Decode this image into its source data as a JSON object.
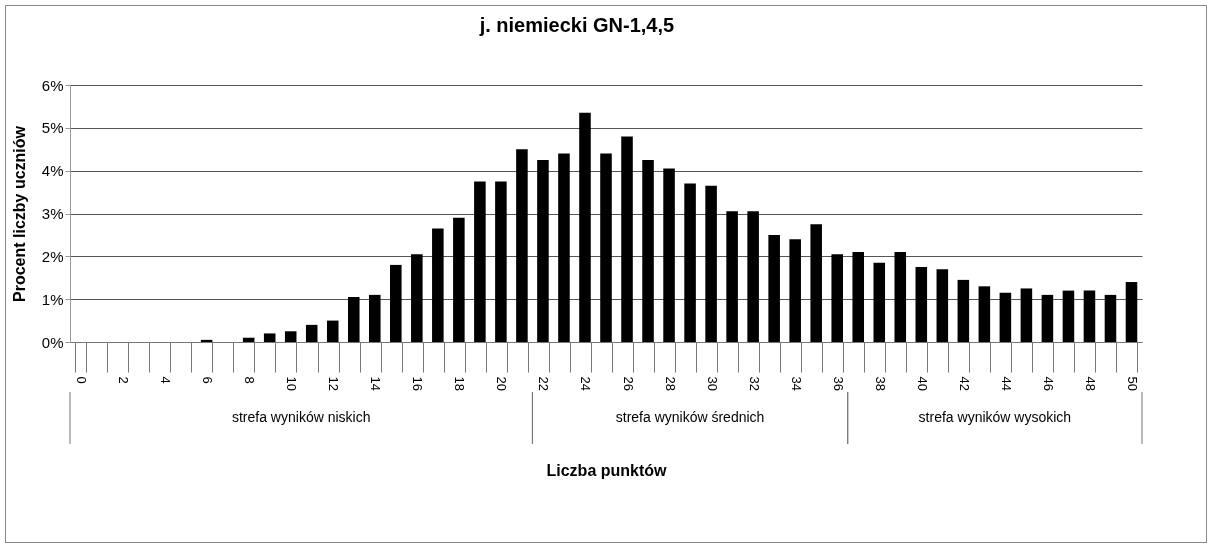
{
  "chart_data": {
    "type": "bar",
    "title": "j. niemiecki GN-1,4,5",
    "xlabel": "Liczba punktów",
    "ylabel": "Procent liczby uczniów",
    "categories": [
      "0",
      null,
      "2",
      null,
      "4",
      null,
      "6",
      null,
      "8",
      null,
      "10",
      null,
      "12",
      null,
      "14",
      null,
      "16",
      null,
      "18",
      null,
      "20",
      null,
      "22",
      null,
      "24",
      null,
      "26",
      null,
      "28",
      null,
      "30",
      null,
      "32",
      null,
      "34",
      null,
      "36",
      null,
      "38",
      null,
      "40",
      null,
      "42",
      null,
      "44",
      null,
      "46",
      null,
      "48",
      null,
      "50"
    ],
    "values": [
      0,
      0,
      0,
      0,
      0,
      0,
      0.05,
      0,
      0.1,
      0.2,
      0.25,
      0.4,
      0.5,
      1.05,
      1.1,
      1.8,
      2.05,
      2.65,
      2.9,
      3.75,
      3.75,
      4.5,
      4.25,
      4.4,
      5.35,
      4.4,
      4.8,
      4.25,
      4.05,
      3.7,
      3.65,
      3.05,
      3.05,
      2.5,
      2.4,
      2.75,
      2.05,
      2.1,
      1.85,
      2.1,
      1.75,
      1.7,
      1.45,
      1.3,
      1.15,
      1.25,
      1.1,
      1.2,
      1.2,
      1.1,
      1.4
    ],
    "color": "#000000",
    "ylim": [
      0,
      6
    ],
    "yticks": [
      {
        "value": 0,
        "label": "0%"
      },
      {
        "value": 1,
        "label": "1%"
      },
      {
        "value": 2,
        "label": "2%"
      },
      {
        "value": 3,
        "label": "3%"
      },
      {
        "value": 4,
        "label": "4%"
      },
      {
        "value": 5,
        "label": "5%"
      },
      {
        "value": 6,
        "label": "6%"
      }
    ],
    "grid": "y",
    "annotations": [
      "strefa wyników niskich",
      "strefa wyników średnich",
      "strefa wyników wysokich"
    ]
  }
}
